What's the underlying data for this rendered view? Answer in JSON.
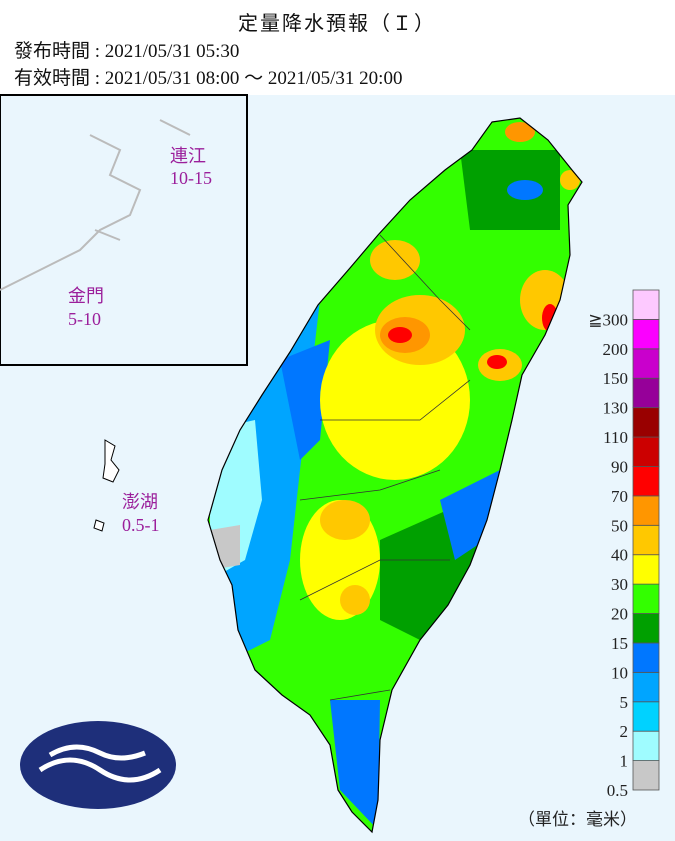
{
  "header": {
    "title": "定量降水預報（Ｉ）",
    "issued": "發布時間 : 2021/05/31 05:30",
    "valid": "有效時間 : 2021/05/31 08:00 ～ 2021/05/31 20:00"
  },
  "islands": [
    {
      "name": "連江",
      "range": "10-15"
    },
    {
      "name": "金門",
      "range": "5-10"
    },
    {
      "name": "澎湖",
      "range": "0.5-1"
    }
  ],
  "legend": {
    "unit": "（單位：毫米）",
    "levels": [
      {
        "label": "0.5",
        "color": "#c8c8c8"
      },
      {
        "label": "1",
        "color": "#9ffcff"
      },
      {
        "label": "2",
        "color": "#00d2ff"
      },
      {
        "label": "5",
        "color": "#00a5ff"
      },
      {
        "label": "10",
        "color": "#0077ff"
      },
      {
        "label": "15",
        "color": "#00a000"
      },
      {
        "label": "20",
        "color": "#33ff00"
      },
      {
        "label": "30",
        "color": "#ffff00"
      },
      {
        "label": "40",
        "color": "#ffc800"
      },
      {
        "label": "50",
        "color": "#ff9600"
      },
      {
        "label": "70",
        "color": "#ff0000"
      },
      {
        "label": "90",
        "color": "#cc0000"
      },
      {
        "label": "110",
        "color": "#990000"
      },
      {
        "label": "130",
        "color": "#960099"
      },
      {
        "label": "150",
        "color": "#c900cc"
      },
      {
        "label": "200",
        "color": "#fb00ff"
      },
      {
        "label": "≧300",
        "color": "#fdc9ff"
      }
    ]
  }
}
